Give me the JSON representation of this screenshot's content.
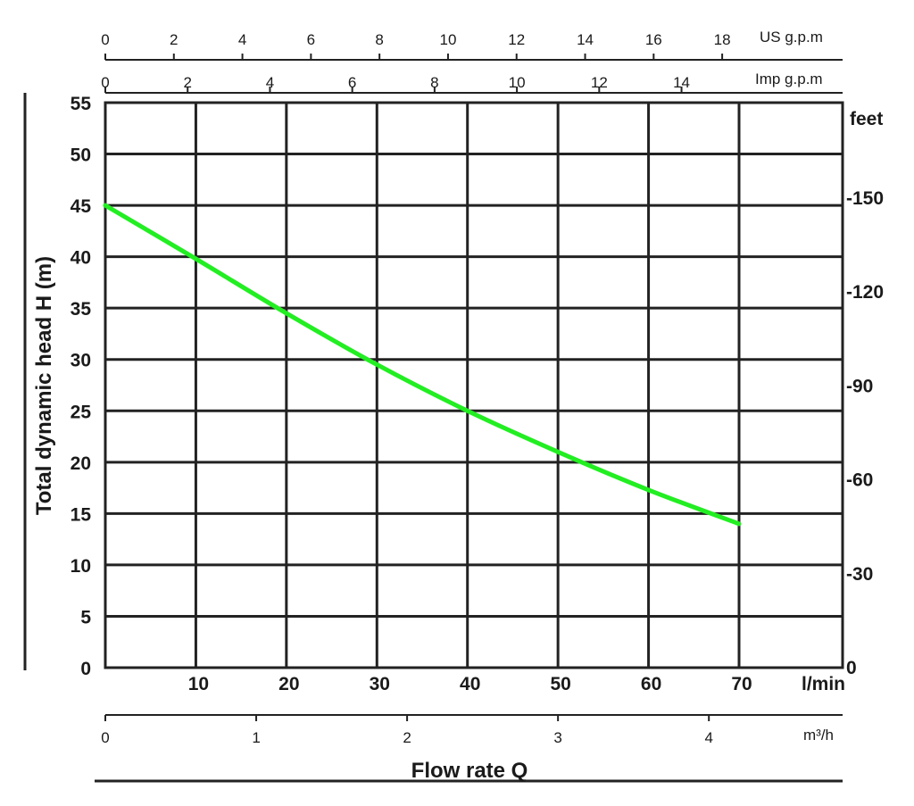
{
  "chart_data": {
    "type": "line",
    "title": "",
    "ylabel": "Total dynamic head H (m)",
    "xlabel": "Flow rate Q",
    "grid": true,
    "x_unit": "l/min",
    "y_unit": "m",
    "xlim": [
      0,
      80
    ],
    "ylim": [
      0,
      55
    ],
    "x_ticks": [
      10,
      20,
      30,
      40,
      50,
      60,
      70
    ],
    "y_ticks": [
      0,
      5,
      10,
      15,
      20,
      25,
      30,
      35,
      40,
      45,
      50,
      55
    ],
    "series": [
      {
        "color": "#22ee22",
        "x": [
          0,
          10,
          20,
          30,
          40,
          50,
          60,
          70
        ],
        "y": [
          45,
          39.8,
          34.5,
          29.5,
          25,
          21,
          17.3,
          14
        ]
      }
    ],
    "secondary_axes": {
      "right_feet": {
        "unit": "feet",
        "ticks": [
          {
            "label": "-150",
            "value": 150
          },
          {
            "label": "-120",
            "value": 120
          },
          {
            "label": "-90",
            "value": 90
          },
          {
            "label": "-60",
            "value": 60
          },
          {
            "label": "-30",
            "value": 30
          },
          {
            "label": "0",
            "value": 0
          }
        ]
      },
      "top_us_gpm": {
        "unit": "US g.p.m",
        "ticks": [
          {
            "label": "0",
            "value": 0
          },
          {
            "label": "2",
            "value": 2
          },
          {
            "label": "4",
            "value": 4
          },
          {
            "label": "6",
            "value": 6
          },
          {
            "label": "8",
            "value": 8
          },
          {
            "label": "10",
            "value": 10
          },
          {
            "label": "12",
            "value": 12
          },
          {
            "label": "14",
            "value": 14
          },
          {
            "label": "16",
            "value": 16
          },
          {
            "label": "18",
            "value": 18
          }
        ]
      },
      "top_imp_gpm": {
        "unit": "Imp g.p.m",
        "ticks": [
          {
            "label": "0",
            "value": 0
          },
          {
            "label": "2",
            "value": 2
          },
          {
            "label": "4",
            "value": 4
          },
          {
            "label": "6",
            "value": 6
          },
          {
            "label": "8",
            "value": 8
          },
          {
            "label": "10",
            "value": 10
          },
          {
            "label": "12",
            "value": 12
          },
          {
            "label": "14",
            "value": 14
          }
        ]
      },
      "bottom_m3h": {
        "unit": "m³/h",
        "ticks": [
          {
            "label": "0",
            "value": 0
          },
          {
            "label": "1",
            "value": 1
          },
          {
            "label": "2",
            "value": 2
          },
          {
            "label": "3",
            "value": 3
          },
          {
            "label": "4",
            "value": 4
          }
        ]
      }
    }
  }
}
